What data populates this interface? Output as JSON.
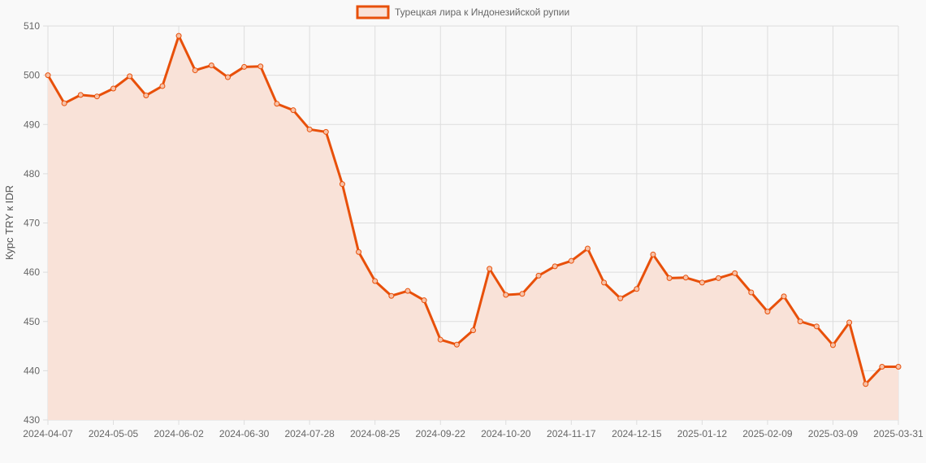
{
  "chart_data": {
    "type": "area",
    "ylabel": "Курс TRY к IDR",
    "xlabel": "",
    "ylim": [
      430,
      510
    ],
    "y_ticks": [
      430,
      440,
      450,
      460,
      470,
      480,
      490,
      500,
      510
    ],
    "x_tick_labels": [
      "2024-04-07",
      "2024-05-05",
      "2024-06-02",
      "2024-06-30",
      "2024-07-28",
      "2024-08-25",
      "2024-09-22",
      "2024-10-20",
      "2024-11-17",
      "2024-12-15",
      "2025-01-12",
      "2025-02-09",
      "2025-03-09",
      "2025-03-31"
    ],
    "legend": {
      "position": "top-center"
    },
    "grid": true,
    "colors": {
      "line": "#e8500a",
      "fill": "#f9e2d8",
      "point_fill": "#f7c2a8"
    },
    "series": [
      {
        "name": "Турецкая лира к Индонезийской рупии",
        "values": [
          500.0,
          494.3,
          496.0,
          495.7,
          497.3,
          499.8,
          495.9,
          497.8,
          508.0,
          501.0,
          502.0,
          499.6,
          501.7,
          501.8,
          494.2,
          492.9,
          489.0,
          488.5,
          477.9,
          464.1,
          458.2,
          455.2,
          456.2,
          454.3,
          446.3,
          445.3,
          448.2,
          460.7,
          455.4,
          455.6,
          459.3,
          461.2,
          462.3,
          464.8,
          457.9,
          454.7,
          456.6,
          463.6,
          458.8,
          458.9,
          457.9,
          458.8,
          459.8,
          455.9,
          452.0,
          455.1,
          450.0,
          449.0,
          445.2,
          449.8,
          437.3,
          440.8,
          440.8
        ]
      }
    ]
  }
}
